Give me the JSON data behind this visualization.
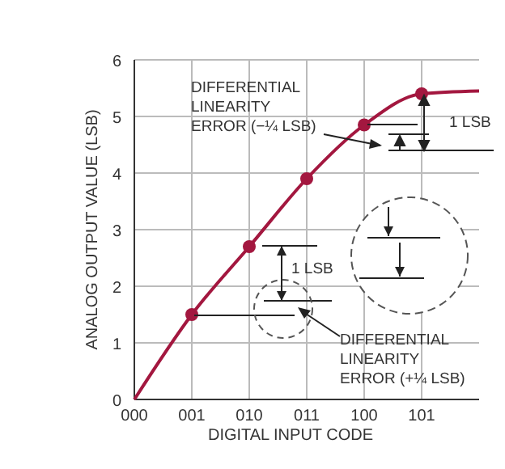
{
  "chart_data": {
    "type": "line",
    "xlabel": "DIGITAL INPUT CODE",
    "ylabel": "ANALOG OUTPUT VALUE (LSB)",
    "categories": [
      "000",
      "001",
      "010",
      "011",
      "100",
      "101",
      null
    ],
    "ylim": [
      0,
      6
    ],
    "yticks": [
      0,
      1,
      2,
      3,
      4,
      5,
      6
    ],
    "grid": true,
    "series": [
      {
        "color": "#a3173f",
        "marker": "none",
        "values": [
          0,
          1.5,
          2.7,
          3.9,
          4.85,
          5.4,
          5.45
        ]
      },
      {
        "type": "scatter",
        "color": "#a3173f",
        "marker": "circle",
        "values": [
          null,
          1.5,
          2.7,
          3.9,
          4.85,
          5.4,
          null
        ]
      }
    ],
    "annotations": [
      "DIFFERENTIAL\nLINEARITY\nERROR (−¼ LSB)",
      {
        "text": "1 LSB",
        "x": "101",
        "y": 5.4
      },
      "1 LSB",
      "DIFFERENTIAL\nLINEARITY\nERROR (+¼ LSB)"
    ]
  }
}
